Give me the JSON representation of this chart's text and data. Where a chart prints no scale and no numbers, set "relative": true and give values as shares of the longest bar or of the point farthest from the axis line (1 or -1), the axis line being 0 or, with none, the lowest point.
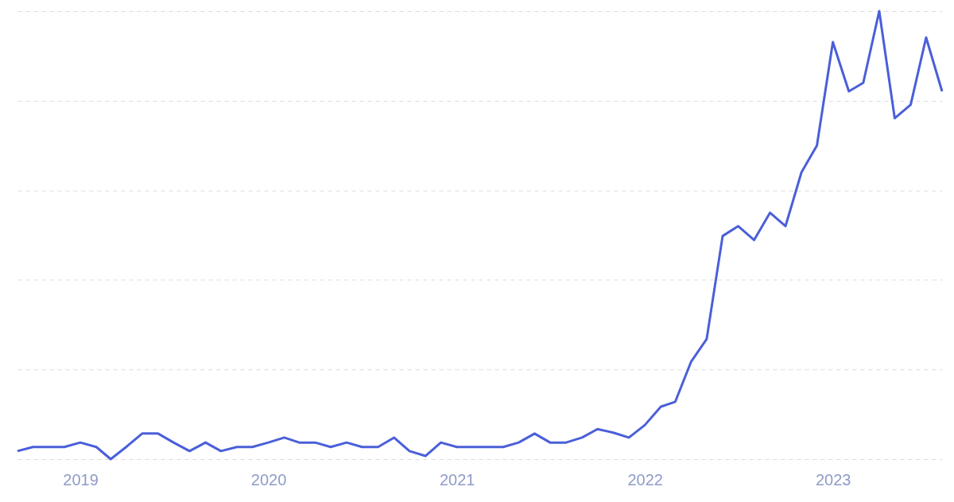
{
  "chart_data": {
    "type": "line",
    "relative": true,
    "grid": "y",
    "marker": "none",
    "line_style": "solid",
    "x": [
      "2018-09",
      "2018-10",
      "2018-11",
      "2018-12",
      "2019-01",
      "2019-02",
      "2019-03",
      "2019-04",
      "2019-05",
      "2019-06",
      "2019-07",
      "2019-08",
      "2019-09",
      "2019-10",
      "2019-11",
      "2019-12",
      "2020-01",
      "2020-02",
      "2020-03",
      "2020-04",
      "2020-05",
      "2020-06",
      "2020-07",
      "2020-08",
      "2020-09",
      "2020-10",
      "2020-11",
      "2020-12",
      "2021-01",
      "2021-02",
      "2021-03",
      "2021-04",
      "2021-05",
      "2021-06",
      "2021-07",
      "2021-08",
      "2021-09",
      "2021-10",
      "2021-11",
      "2021-12",
      "2022-01",
      "2022-02",
      "2022-03",
      "2022-04",
      "2022-05",
      "2022-06",
      "2022-07",
      "2022-08",
      "2022-09",
      "2022-10",
      "2022-11",
      "2022-12",
      "2023-01",
      "2023-02",
      "2023-03",
      "2023-04",
      "2023-05",
      "2023-06",
      "2023-07",
      "2023-08"
    ],
    "xlim": [
      "2018-09",
      "2023-08"
    ],
    "xticks": [
      {
        "value": "2019-01",
        "label": "2019"
      },
      {
        "value": "2020-01",
        "label": "2020"
      },
      {
        "value": "2021-01",
        "label": "2021"
      },
      {
        "value": "2022-01",
        "label": "2022"
      },
      {
        "value": "2023-01",
        "label": "2023"
      }
    ],
    "series": [
      {
        "color": "#4a5fd8",
        "values": [
          0.018,
          0.027,
          0.027,
          0.027,
          0.037,
          0.027,
          0,
          0.028,
          0.057,
          0.057,
          0.037,
          0.018,
          0.037,
          0.018,
          0.027,
          0.027,
          0.037,
          0.048,
          0.037,
          0.037,
          0.027,
          0.037,
          0.027,
          0.027,
          0.048,
          0.018,
          0.007,
          0.037,
          0.027,
          0.027,
          0.027,
          0.027,
          0.037,
          0.057,
          0.037,
          0.037,
          0.048,
          0.067,
          0.059,
          0.048,
          0.076,
          0.117,
          0.128,
          0.218,
          0.268,
          0.498,
          0.52,
          0.489,
          0.55,
          0.52,
          0.64,
          0.7,
          0.931,
          0.821,
          0.84,
          1,
          0.761,
          0.791,
          0.941,
          0.821
        ]
      }
    ]
  }
}
